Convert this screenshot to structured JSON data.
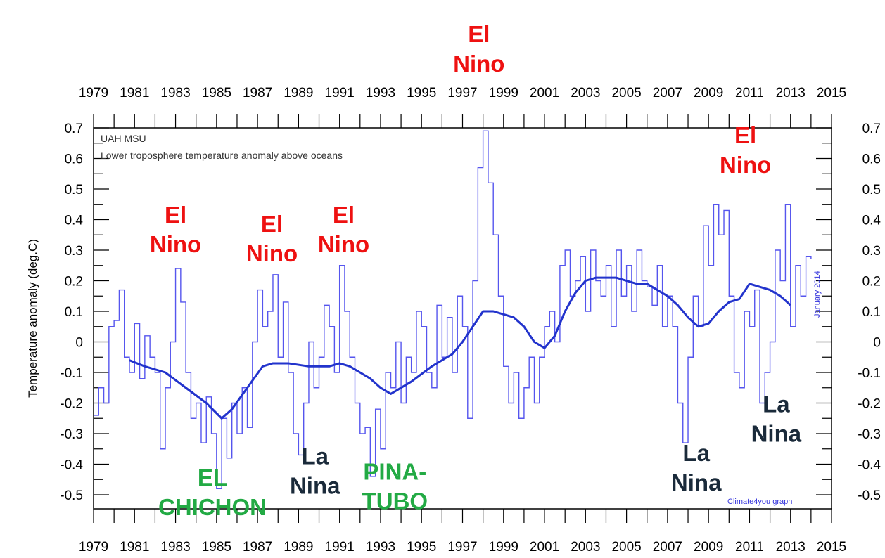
{
  "chart_data": {
    "type": "line",
    "title_lines": [
      "UAH MSU",
      "Lower troposphere temperature anomaly above oceans"
    ],
    "ylabel": "Temperature anomaly (deg.C)",
    "xlim": [
      1979,
      2015
    ],
    "ylim": [
      -0.55,
      0.7
    ],
    "x_tick_labels": [
      "1979",
      "1981",
      "1983",
      "1985",
      "1987",
      "1989",
      "1991",
      "1993",
      "1995",
      "1997",
      "1999",
      "2001",
      "2003",
      "2005",
      "2007",
      "2009",
      "2011",
      "2013",
      "2015"
    ],
    "y_tick_labels": [
      "0.7",
      "0.6",
      "0.5",
      "0.4",
      "0.3",
      "0.2",
      "0.1",
      "0",
      "-0.1",
      "-0.2",
      "-0.3",
      "-0.4",
      "-0.5"
    ],
    "y_tick_values": [
      0.7,
      0.6,
      0.5,
      0.4,
      0.3,
      0.2,
      0.1,
      0,
      -0.1,
      -0.2,
      -0.3,
      -0.4,
      -0.5
    ],
    "date_note": "January 2014",
    "credit": "Climate4you graph",
    "colors": {
      "monthly": "#5555ee",
      "smooth": "#2233cc",
      "el_nino": "#ee1111",
      "la_nina": "#1a2a3a",
      "volcano": "#22aa44"
    },
    "series": [
      {
        "name": "monthly",
        "x": [
          1979.0,
          1979.25,
          1979.5,
          1979.75,
          1980.0,
          1980.25,
          1980.5,
          1980.75,
          1981.0,
          1981.25,
          1981.5,
          1981.75,
          1982.0,
          1982.25,
          1982.5,
          1982.75,
          1983.0,
          1983.25,
          1983.5,
          1983.75,
          1984.0,
          1984.25,
          1984.5,
          1984.75,
          1985.0,
          1985.25,
          1985.5,
          1985.75,
          1986.0,
          1986.25,
          1986.5,
          1986.75,
          1987.0,
          1987.25,
          1987.5,
          1987.75,
          1988.0,
          1988.25,
          1988.5,
          1988.75,
          1989.0,
          1989.25,
          1989.5,
          1989.75,
          1990.0,
          1990.25,
          1990.5,
          1990.75,
          1991.0,
          1991.25,
          1991.5,
          1991.75,
          1992.0,
          1992.25,
          1992.5,
          1992.75,
          1993.0,
          1993.25,
          1993.5,
          1993.75,
          1994.0,
          1994.25,
          1994.5,
          1994.75,
          1995.0,
          1995.25,
          1995.5,
          1995.75,
          1996.0,
          1996.25,
          1996.5,
          1996.75,
          1997.0,
          1997.25,
          1997.5,
          1997.75,
          1998.0,
          1998.25,
          1998.5,
          1998.75,
          1999.0,
          1999.25,
          1999.5,
          1999.75,
          2000.0,
          2000.25,
          2000.5,
          2000.75,
          2001.0,
          2001.25,
          2001.5,
          2001.75,
          2002.0,
          2002.25,
          2002.5,
          2002.75,
          2003.0,
          2003.25,
          2003.5,
          2003.75,
          2004.0,
          2004.25,
          2004.5,
          2004.75,
          2005.0,
          2005.25,
          2005.5,
          2005.75,
          2006.0,
          2006.25,
          2006.5,
          2006.75,
          2007.0,
          2007.25,
          2007.5,
          2007.75,
          2008.0,
          2008.25,
          2008.5,
          2008.75,
          2009.0,
          2009.25,
          2009.5,
          2009.75,
          2010.0,
          2010.25,
          2010.5,
          2010.75,
          2011.0,
          2011.25,
          2011.5,
          2011.75,
          2012.0,
          2012.25,
          2012.5,
          2012.75,
          2013.0,
          2013.25,
          2013.5,
          2013.75,
          2014.0
        ],
        "values": [
          -0.24,
          -0.15,
          -0.2,
          0.05,
          0.07,
          0.17,
          -0.05,
          -0.1,
          0.06,
          -0.12,
          0.02,
          -0.05,
          -0.1,
          -0.35,
          -0.15,
          0.0,
          0.24,
          0.13,
          -0.1,
          -0.25,
          -0.2,
          -0.33,
          -0.18,
          -0.3,
          -0.48,
          -0.25,
          -0.38,
          -0.2,
          -0.3,
          -0.15,
          -0.28,
          0.0,
          0.17,
          0.05,
          0.1,
          0.22,
          -0.05,
          0.13,
          -0.1,
          -0.3,
          -0.37,
          -0.2,
          0.0,
          -0.15,
          -0.05,
          0.12,
          0.05,
          -0.1,
          0.25,
          0.1,
          -0.05,
          -0.2,
          -0.3,
          -0.28,
          -0.44,
          -0.22,
          -0.35,
          -0.1,
          -0.15,
          0.0,
          -0.2,
          -0.05,
          -0.1,
          0.1,
          0.05,
          -0.1,
          -0.15,
          0.12,
          -0.05,
          0.08,
          -0.1,
          0.15,
          0.05,
          -0.25,
          0.2,
          0.57,
          0.69,
          0.52,
          0.35,
          0.15,
          -0.08,
          -0.2,
          -0.1,
          -0.25,
          -0.15,
          -0.05,
          -0.2,
          -0.05,
          0.05,
          0.1,
          0.0,
          0.25,
          0.3,
          0.15,
          0.2,
          0.28,
          0.1,
          0.3,
          0.2,
          0.15,
          0.25,
          0.05,
          0.3,
          0.15,
          0.25,
          0.1,
          0.3,
          0.2,
          0.18,
          0.12,
          0.25,
          0.05,
          0.15,
          0.05,
          -0.2,
          -0.33,
          -0.05,
          0.15,
          0.05,
          0.38,
          0.25,
          0.45,
          0.35,
          0.43,
          0.15,
          -0.1,
          -0.15,
          0.1,
          0.05,
          0.17,
          -0.2,
          -0.1,
          0.0,
          0.3,
          0.2,
          0.45,
          0.05,
          0.25,
          0.15,
          0.28,
          0.27
        ]
      },
      {
        "name": "running mean",
        "x": [
          1980.75,
          1981.5,
          1982.5,
          1983.5,
          1984.5,
          1985.25,
          1985.75,
          1986.5,
          1987.25,
          1987.75,
          1988.5,
          1989.5,
          1990.5,
          1991.0,
          1991.5,
          1992.0,
          1992.5,
          1993.0,
          1993.5,
          1994.5,
          1995.5,
          1996.5,
          1997.0,
          1997.5,
          1998.0,
          1998.5,
          1999.0,
          1999.5,
          2000.0,
          2000.5,
          2001.0,
          2001.5,
          2002.0,
          2002.5,
          2003.0,
          2003.5,
          2004.0,
          2004.5,
          2005.0,
          2005.5,
          2006.0,
          2006.5,
          2007.0,
          2007.5,
          2008.0,
          2008.5,
          2009.0,
          2009.5,
          2010.0,
          2010.5,
          2011.0,
          2011.5,
          2012.0,
          2012.5,
          2013.0
        ],
        "values": [
          -0.06,
          -0.08,
          -0.1,
          -0.15,
          -0.2,
          -0.25,
          -0.22,
          -0.15,
          -0.08,
          -0.07,
          -0.07,
          -0.08,
          -0.08,
          -0.07,
          -0.08,
          -0.1,
          -0.12,
          -0.15,
          -0.17,
          -0.13,
          -0.08,
          -0.04,
          0.0,
          0.05,
          0.1,
          0.1,
          0.09,
          0.08,
          0.05,
          0.0,
          -0.02,
          0.02,
          0.1,
          0.16,
          0.2,
          0.21,
          0.21,
          0.21,
          0.2,
          0.19,
          0.19,
          0.17,
          0.15,
          0.12,
          0.08,
          0.05,
          0.06,
          0.1,
          0.13,
          0.14,
          0.19,
          0.18,
          0.17,
          0.15,
          0.12
        ]
      }
    ],
    "annotations": [
      {
        "lines": [
          "El",
          "Nino"
        ],
        "kind": "el_nino",
        "x": 1997.8,
        "y": 0.98
      },
      {
        "lines": [
          "El",
          "Nino"
        ],
        "kind": "el_nino",
        "x": 1983.0,
        "y": 0.39
      },
      {
        "lines": [
          "El",
          "Nino"
        ],
        "kind": "el_nino",
        "x": 1987.7,
        "y": 0.36
      },
      {
        "lines": [
          "El",
          "Nino"
        ],
        "kind": "el_nino",
        "x": 1991.2,
        "y": 0.39
      },
      {
        "lines": [
          "El",
          "Nino"
        ],
        "kind": "el_nino",
        "x": 2010.8,
        "y": 0.65
      },
      {
        "lines": [
          "La",
          "Nina"
        ],
        "kind": "la_nina",
        "x": 1989.8,
        "y": -0.4
      },
      {
        "lines": [
          "La",
          "Nina"
        ],
        "kind": "la_nina",
        "x": 2008.4,
        "y": -0.39
      },
      {
        "lines": [
          "La",
          "Nina"
        ],
        "kind": "la_nina",
        "x": 2012.3,
        "y": -0.23
      },
      {
        "lines": [
          "EL",
          "CHICHON"
        ],
        "kind": "volcano",
        "x": 1984.8,
        "y": -0.47
      },
      {
        "lines": [
          "PINA-",
          "TUBO"
        ],
        "kind": "volcano",
        "x": 1993.7,
        "y": -0.45
      }
    ]
  }
}
